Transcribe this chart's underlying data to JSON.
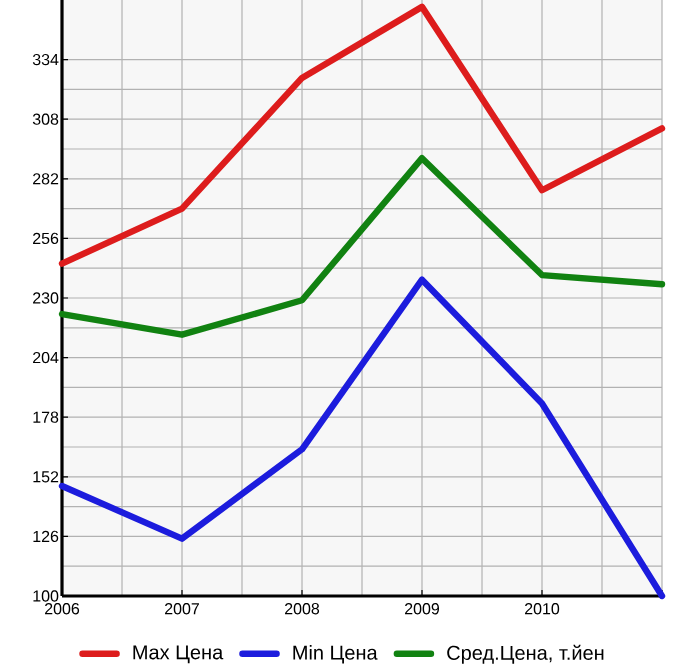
{
  "chart_data": {
    "type": "line",
    "categories": [
      "2006",
      "2007",
      "2008",
      "2009",
      "2010",
      null
    ],
    "series": [
      {
        "name": "Max Цена",
        "color": "#dd1c1c",
        "values": [
          245,
          269,
          326,
          357,
          277,
          304
        ]
      },
      {
        "name": "Min Цена",
        "color": "#1c1cdd",
        "values": [
          148,
          125,
          164,
          238,
          184,
          100
        ]
      },
      {
        "name": "Сред.Цена, т.йен",
        "color": "#118211",
        "values": [
          223,
          214,
          229,
          291,
          240,
          236
        ]
      }
    ],
    "ylim": [
      100,
      360
    ],
    "yticks": [
      100,
      126,
      152,
      178,
      204,
      230,
      256,
      282,
      308,
      334
    ],
    "grid": true,
    "legend": "bottom",
    "marker": "none",
    "line_style": "solid"
  }
}
